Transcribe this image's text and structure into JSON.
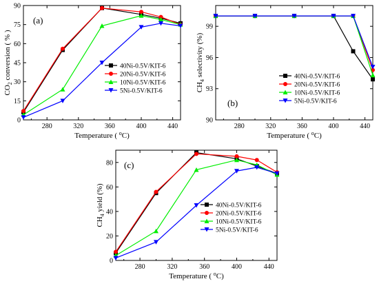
{
  "legend_labels": [
    "40Ni-0.5V/KIT-6",
    "20Ni-0.5V/KIT-6",
    "10Ni-0.5V/KIT-6",
    "5Ni-0.5V/KIT-6"
  ],
  "colors": {
    "40Ni": "#000000",
    "20Ni": "#ff0000",
    "10Ni": "#00ee00",
    "5Ni": "#0000ff"
  },
  "chart_data": [
    {
      "type": "line",
      "panel_label": "(a)",
      "xlabel": "Temperature (°C)",
      "ylabel": "CO2 conversion (%)",
      "ylabel_parts": [
        "CO",
        "2",
        " conversion ( % )"
      ],
      "xlim": [
        250,
        450
      ],
      "ylim": [
        0,
        90
      ],
      "xticks": [
        280,
        320,
        360,
        400,
        440
      ],
      "yticks": [
        0,
        15,
        30,
        45,
        60,
        75,
        90
      ],
      "series": [
        {
          "name": "40Ni-0.5V/KIT-6",
          "color": "#000000",
          "marker": "square",
          "x": [
            250,
            300,
            350,
            400,
            425,
            450
          ],
          "y": [
            6,
            55,
            88,
            83,
            80,
            76
          ]
        },
        {
          "name": "20Ni-0.5V/KIT-6",
          "color": "#ff0000",
          "marker": "circle",
          "x": [
            250,
            300,
            350,
            400,
            425,
            450
          ],
          "y": [
            7,
            56,
            88,
            85,
            81,
            75
          ]
        },
        {
          "name": "10Ni-0.5V/KIT-6",
          "color": "#00ee00",
          "marker": "triangle-up",
          "x": [
            250,
            300,
            350,
            400,
            425,
            450
          ],
          "y": [
            4,
            24,
            74,
            82,
            79,
            75
          ]
        },
        {
          "name": "5Ni-0.5V/KIT-6",
          "color": "#0000ff",
          "marker": "triangle-down",
          "x": [
            250,
            300,
            350,
            400,
            425,
            450
          ],
          "y": [
            2,
            15,
            45,
            73,
            76,
            74
          ]
        }
      ]
    },
    {
      "type": "line",
      "panel_label": "(b)",
      "xlabel": "Temperature (°C)",
      "ylabel": "CH4 selectivity (%)",
      "ylabel_parts": [
        "CH",
        "4",
        " selectivity (%)"
      ],
      "xlim": [
        250,
        450
      ],
      "ylim": [
        90,
        101
      ],
      "xticks": [
        280,
        320,
        360,
        400,
        440
      ],
      "yticks": [
        90,
        93,
        96,
        99
      ],
      "series": [
        {
          "name": "40Ni-0.5V/KIT-6",
          "color": "#000000",
          "marker": "square",
          "x": [
            250,
            300,
            350,
            400,
            425,
            450
          ],
          "y": [
            100,
            100,
            100,
            100,
            96.6,
            93.9
          ]
        },
        {
          "name": "20Ni-0.5V/KIT-6",
          "color": "#ff0000",
          "marker": "circle",
          "x": [
            250,
            300,
            350,
            400,
            425,
            450
          ],
          "y": [
            100,
            100,
            100,
            100,
            100,
            94.8
          ]
        },
        {
          "name": "10Ni-0.5V/KIT-6",
          "color": "#00ee00",
          "marker": "triangle-up",
          "x": [
            250,
            300,
            350,
            400,
            425,
            450
          ],
          "y": [
            100,
            100,
            100,
            100,
            100,
            94.3
          ]
        },
        {
          "name": "5Ni-0.5V/KIT-6",
          "color": "#0000ff",
          "marker": "triangle-down",
          "x": [
            250,
            300,
            350,
            400,
            425,
            450
          ],
          "y": [
            100,
            100,
            100,
            100,
            100,
            95.1
          ]
        }
      ]
    },
    {
      "type": "line",
      "panel_label": "(c)",
      "xlabel": "Temperature (°C)",
      "ylabel": "CH4 yield (%)",
      "ylabel_parts": [
        "CH",
        "4",
        " yield (%)"
      ],
      "xlim": [
        250,
        450
      ],
      "ylim": [
        0,
        90
      ],
      "xticks": [
        280,
        320,
        360,
        400,
        440
      ],
      "yticks": [
        0,
        20,
        40,
        60,
        80
      ],
      "series": [
        {
          "name": "40Ni-0.5V/KIT-6",
          "color": "#000000",
          "marker": "square",
          "x": [
            250,
            300,
            350,
            400,
            425,
            450
          ],
          "y": [
            6,
            55,
            88,
            83,
            77,
            71
          ]
        },
        {
          "name": "20Ni-0.5V/KIT-6",
          "color": "#ff0000",
          "marker": "circle",
          "x": [
            250,
            300,
            350,
            400,
            425,
            450
          ],
          "y": [
            7,
            56,
            87,
            85,
            82,
            72
          ]
        },
        {
          "name": "10Ni-0.5V/KIT-6",
          "color": "#00ee00",
          "marker": "triangle-up",
          "x": [
            250,
            300,
            350,
            400,
            425,
            450
          ],
          "y": [
            4,
            24,
            74,
            82,
            78,
            70
          ]
        },
        {
          "name": "5Ni-0.5V/KIT-6",
          "color": "#0000ff",
          "marker": "triangle-down",
          "x": [
            250,
            300,
            350,
            400,
            425,
            450
          ],
          "y": [
            2,
            15,
            45,
            73,
            76,
            71
          ]
        }
      ]
    }
  ]
}
